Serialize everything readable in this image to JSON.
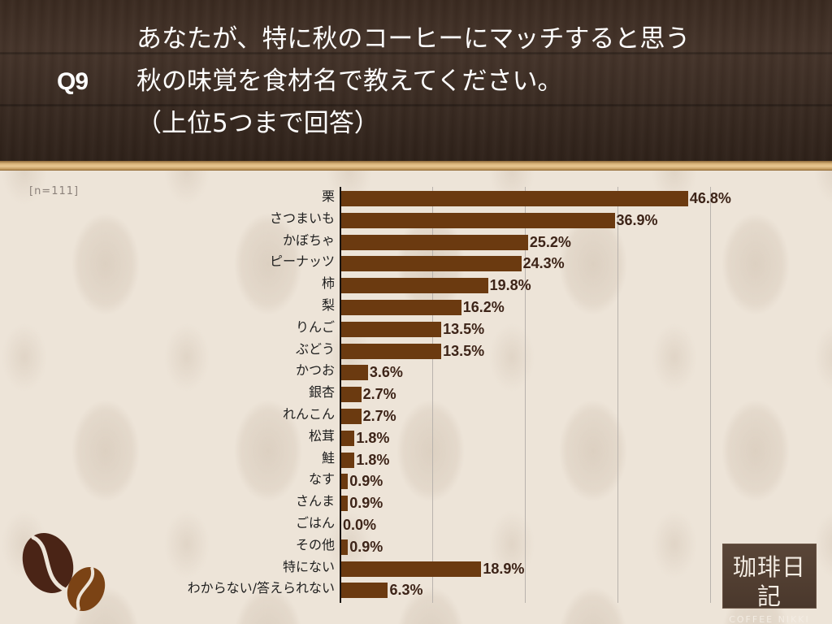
{
  "header": {
    "question_no": "Q9",
    "title_lines": [
      "あなたが、特に秋のコーヒーにマッチすると思う",
      "秋の味覚を食材名で教えてください。",
      "（上位5つまで回答）"
    ]
  },
  "sample_size": "[n=111]",
  "logo": {
    "kanji": "珈琲日記",
    "sub": "COFFEE NIKKI"
  },
  "colors": {
    "bar": "#6b3a10",
    "value_text": "#3d2418",
    "header_bg": "#3b2c23",
    "gold_band": "#d9b47a",
    "background": "#ede4d8"
  },
  "chart_data": {
    "type": "bar",
    "orientation": "horizontal",
    "title": "あなたが、特に秋のコーヒーにマッチすると思う秋の味覚を食材名で教えてください。（上位5つまで回答）",
    "subtitle": "[n=111]",
    "xlabel": "",
    "ylabel": "",
    "xlim": [
      0,
      50
    ],
    "grid": true,
    "gridlines_at": [
      12.5,
      25,
      37.5,
      50
    ],
    "legend": "none",
    "value_suffix": "%",
    "categories": [
      "栗",
      "さつまいも",
      "かぼちゃ",
      "ピーナッツ",
      "柿",
      "梨",
      "りんご",
      "ぶどう",
      "かつお",
      "銀杏",
      "れんこん",
      "松茸",
      "鮭",
      "なす",
      "さんま",
      "ごはん",
      "その他",
      "特にない",
      "わからない/答えられない"
    ],
    "values": [
      46.8,
      36.9,
      25.2,
      24.3,
      19.8,
      16.2,
      13.5,
      13.5,
      3.6,
      2.7,
      2.7,
      1.8,
      1.8,
      0.9,
      0.9,
      0.0,
      0.9,
      18.9,
      6.3
    ],
    "labels": [
      "46.8%",
      "36.9%",
      "25.2%",
      "24.3%",
      "19.8%",
      "16.2%",
      "13.5%",
      "13.5%",
      "3.6%",
      "2.7%",
      "2.7%",
      "1.8%",
      "1.8%",
      "0.9%",
      "0.9%",
      "0.0%",
      "0.9%",
      "18.9%",
      "6.3%"
    ]
  }
}
